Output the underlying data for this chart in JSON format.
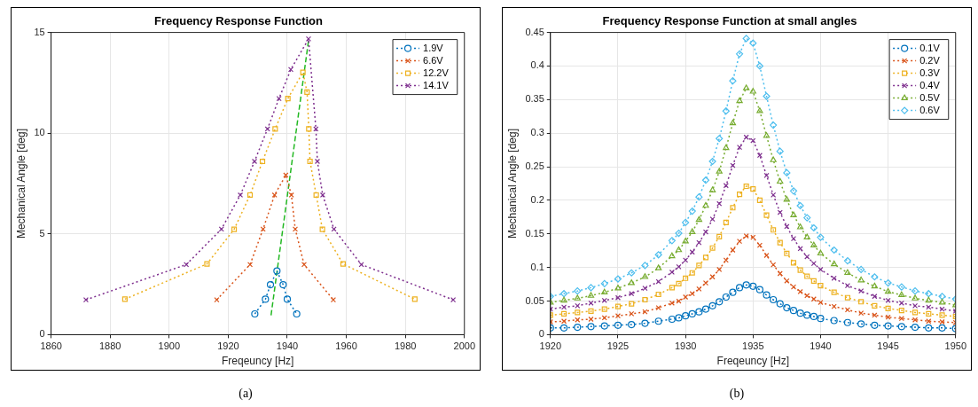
{
  "chart_data": [
    {
      "type": "line",
      "title": "Frequency Response Function",
      "xlabel": "Freqeuncy [Hz]",
      "ylabel": "Mechanical Angle [deg]",
      "xlim": [
        1860,
        2000
      ],
      "ylim": [
        0,
        15
      ],
      "xticks": [
        1860,
        1880,
        1900,
        1920,
        1940,
        1960,
        1980,
        2000
      ],
      "yticks": [
        0,
        5,
        10,
        15
      ],
      "grid": true,
      "legend": "top right",
      "annotations": [
        "(a)"
      ],
      "series": [
        {
          "name": "1.9V",
          "color": "#0072bd",
          "marker": "circle",
          "line_style": "dotted",
          "x": [
            1929,
            1932.6,
            1934.3,
            1936.5,
            1938.6,
            1940,
            1943.2
          ],
          "values": [
            1.03,
            1.76,
            2.48,
            3.16,
            2.48,
            1.76,
            1.03
          ]
        },
        {
          "name": "6.6V",
          "color": "#d95319",
          "marker": "cross",
          "line_style": "dotted",
          "x": [
            1916.1,
            1927.4,
            1931.8,
            1935.7,
            1939.5,
            1941.4,
            1942.7,
            1945.7,
            1955.6
          ],
          "values": [
            1.73,
            3.48,
            5.24,
            6.93,
            7.92,
            6.93,
            5.24,
            3.48,
            1.73
          ]
        },
        {
          "name": "12.2V",
          "color": "#edb120",
          "marker": "square",
          "line_style": "dotted",
          "x": [
            1885,
            1912.8,
            1922,
            1927.4,
            1931.6,
            1935.9,
            1940.2,
            1945.3,
            1946.7,
            1947.3,
            1947.7,
            1949.8,
            1951.9,
            1958.9,
            1983.2
          ],
          "values": [
            1.76,
            3.51,
            5.23,
            6.93,
            8.6,
            10.21,
            11.72,
            13.02,
            12.04,
            10.21,
            8.6,
            6.93,
            5.23,
            3.51,
            1.76
          ]
        },
        {
          "name": "14.1V",
          "color": "#7e2f8e",
          "marker": "cross",
          "line_style": "dotted",
          "x": [
            1871.8,
            1905.8,
            1917.7,
            1924.1,
            1928.9,
            1933.3,
            1937.2,
            1941.2,
            1947.2,
            1949.7,
            1950.2,
            1952,
            1955.8,
            1965.1,
            1996.2
          ],
          "values": [
            1.73,
            3.48,
            5.24,
            6.93,
            8.6,
            10.21,
            11.72,
            13.16,
            14.68,
            10.21,
            8.6,
            6.93,
            5.24,
            3.48,
            1.73
          ]
        },
        {
          "type": "line",
          "color": "#22b822",
          "marker": "none",
          "line_style": "dashed",
          "x": [
            1934.5,
            1947.2
          ],
          "values": [
            0.96,
            14.6
          ]
        }
      ]
    },
    {
      "type": "line",
      "title": "Frequency Response Function at small angles",
      "xlabel": "Freqeuncy [Hz]",
      "ylabel": "Mechanical Angle [deg]",
      "xlim": [
        1920,
        1950
      ],
      "ylim": [
        0,
        0.45
      ],
      "xticks": [
        1920,
        1925,
        1930,
        1935,
        1940,
        1945,
        1950
      ],
      "yticks": [
        0,
        0.05,
        0.1,
        0.15,
        0.2,
        0.25,
        0.3,
        0.35,
        0.4,
        0.45
      ],
      "grid": true,
      "legend": "top right",
      "annotations": [
        "(b)"
      ],
      "x": [
        1920,
        1921,
        1922,
        1923,
        1924,
        1925,
        1926,
        1927,
        1928,
        1929,
        1929.5,
        1930,
        1930.5,
        1931,
        1931.5,
        1932,
        1932.5,
        1933,
        1933.5,
        1934,
        1934.5,
        1935,
        1935.5,
        1936,
        1936.5,
        1937,
        1937.5,
        1938,
        1938.5,
        1939,
        1939.5,
        1940,
        1941,
        1942,
        1943,
        1944,
        1945,
        1946,
        1947,
        1948,
        1949,
        1950
      ],
      "series": [
        {
          "name": "0.1V",
          "color": "#0072bd",
          "marker": "circle",
          "line_style": "dotted",
          "values": [
            0.01,
            0.01,
            0.011,
            0.012,
            0.013,
            0.014,
            0.015,
            0.017,
            0.02,
            0.023,
            0.025,
            0.028,
            0.031,
            0.034,
            0.038,
            0.043,
            0.049,
            0.056,
            0.063,
            0.07,
            0.074,
            0.072,
            0.067,
            0.059,
            0.052,
            0.046,
            0.04,
            0.036,
            0.032,
            0.029,
            0.027,
            0.024,
            0.021,
            0.018,
            0.016,
            0.014,
            0.013,
            0.012,
            0.011,
            0.01,
            0.01,
            0.009
          ]
        },
        {
          "name": "0.2V",
          "color": "#d95319",
          "marker": "cross",
          "line_style": "dotted",
          "values": [
            0.019,
            0.02,
            0.022,
            0.023,
            0.025,
            0.028,
            0.031,
            0.034,
            0.04,
            0.047,
            0.05,
            0.056,
            0.061,
            0.068,
            0.077,
            0.086,
            0.097,
            0.111,
            0.126,
            0.139,
            0.147,
            0.145,
            0.133,
            0.118,
            0.104,
            0.091,
            0.08,
            0.071,
            0.064,
            0.058,
            0.053,
            0.048,
            0.042,
            0.037,
            0.032,
            0.029,
            0.026,
            0.024,
            0.022,
            0.02,
            0.019,
            0.018
          ]
        },
        {
          "name": "0.3V",
          "color": "#edb120",
          "marker": "square",
          "line_style": "dotted",
          "values": [
            0.029,
            0.031,
            0.033,
            0.035,
            0.038,
            0.042,
            0.046,
            0.052,
            0.06,
            0.07,
            0.076,
            0.084,
            0.092,
            0.103,
            0.115,
            0.129,
            0.146,
            0.167,
            0.189,
            0.209,
            0.221,
            0.217,
            0.2,
            0.178,
            0.156,
            0.137,
            0.121,
            0.107,
            0.096,
            0.087,
            0.08,
            0.073,
            0.063,
            0.055,
            0.049,
            0.043,
            0.039,
            0.036,
            0.033,
            0.031,
            0.029,
            0.027
          ]
        },
        {
          "name": "0.4V",
          "color": "#7e2f8e",
          "marker": "cross",
          "line_style": "dotted",
          "values": [
            0.038,
            0.041,
            0.043,
            0.047,
            0.051,
            0.055,
            0.061,
            0.069,
            0.079,
            0.093,
            0.101,
            0.111,
            0.123,
            0.137,
            0.153,
            0.172,
            0.195,
            0.222,
            0.252,
            0.279,
            0.294,
            0.289,
            0.267,
            0.237,
            0.208,
            0.182,
            0.161,
            0.143,
            0.128,
            0.116,
            0.106,
            0.097,
            0.084,
            0.073,
            0.065,
            0.057,
            0.051,
            0.047,
            0.043,
            0.041,
            0.038,
            0.035
          ]
        },
        {
          "name": "0.5V",
          "color": "#77ac30",
          "marker": "triangle",
          "line_style": "dotted",
          "values": [
            0.048,
            0.051,
            0.054,
            0.058,
            0.063,
            0.069,
            0.077,
            0.086,
            0.099,
            0.117,
            0.126,
            0.139,
            0.153,
            0.171,
            0.192,
            0.215,
            0.243,
            0.278,
            0.315,
            0.348,
            0.367,
            0.362,
            0.333,
            0.296,
            0.26,
            0.228,
            0.201,
            0.178,
            0.16,
            0.145,
            0.133,
            0.121,
            0.105,
            0.092,
            0.081,
            0.072,
            0.064,
            0.059,
            0.054,
            0.051,
            0.048,
            0.044
          ]
        },
        {
          "name": "0.6V",
          "color": "#4dbeee",
          "marker": "diamond",
          "line_style": "dotted",
          "values": [
            0.057,
            0.061,
            0.065,
            0.07,
            0.076,
            0.083,
            0.092,
            0.103,
            0.119,
            0.14,
            0.151,
            0.167,
            0.184,
            0.205,
            0.23,
            0.258,
            0.292,
            0.333,
            0.378,
            0.418,
            0.441,
            0.434,
            0.4,
            0.355,
            0.312,
            0.273,
            0.241,
            0.214,
            0.192,
            0.174,
            0.159,
            0.145,
            0.126,
            0.11,
            0.097,
            0.086,
            0.077,
            0.071,
            0.065,
            0.061,
            0.057,
            0.053
          ]
        }
      ]
    }
  ]
}
